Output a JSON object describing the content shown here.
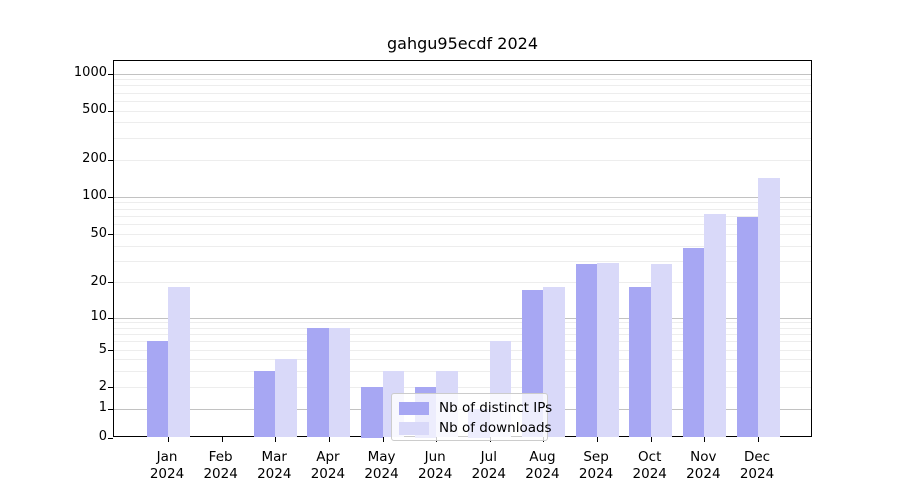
{
  "chart_data": {
    "type": "bar",
    "title": "gahgu95ecdf 2024",
    "x_year": "2024",
    "x_months": [
      "Jan",
      "Feb",
      "Mar",
      "Apr",
      "May",
      "Jun",
      "Jul",
      "Aug",
      "Sep",
      "Oct",
      "Nov",
      "Dec"
    ],
    "categories": [
      "Jan 2024",
      "Feb 2024",
      "Mar 2024",
      "Apr 2024",
      "May 2024",
      "Jun 2024",
      "Jul 2024",
      "Aug 2024",
      "Sep 2024",
      "Oct 2024",
      "Nov 2024",
      "Dec 2024"
    ],
    "series": [
      {
        "name": "Nb of distinct IPs",
        "color": "#a7a7f3",
        "values": [
          6,
          0,
          3,
          8,
          2,
          2,
          1,
          17,
          28,
          18,
          38,
          68
        ]
      },
      {
        "name": "Nb of downloads",
        "color": "#d9d9f9",
        "values": [
          18,
          0,
          4,
          8,
          3,
          3,
          6,
          18,
          29,
          28,
          73,
          141
        ]
      }
    ],
    "y_ticks": [
      0,
      1,
      2,
      5,
      10,
      20,
      50,
      100,
      200,
      500,
      1000
    ],
    "y_axis": {
      "scale": "log-like (compressed near zero)",
      "range_labels": [
        "0",
        "1000"
      ]
    },
    "grid": "horizontal, major lines at 1/10/100/1000, minor log lines",
    "legend_position": "inside plot, lower middle"
  }
}
